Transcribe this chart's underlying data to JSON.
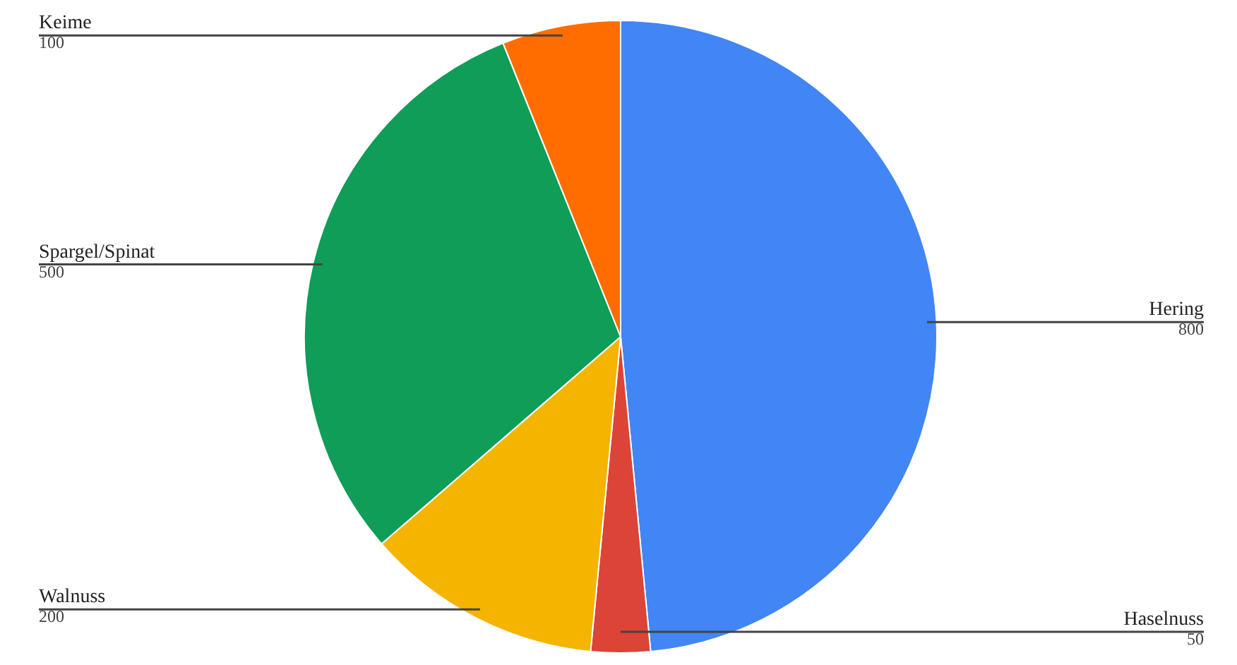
{
  "chart_data": {
    "type": "pie",
    "categories": [
      "Hering",
      "Haselnuss",
      "Walnuss",
      "Spargel/Spinat",
      "Keime"
    ],
    "values": [
      800,
      50,
      200,
      500,
      100
    ],
    "colors": [
      "#4285f4",
      "#db4437",
      "#f4b400",
      "#0f9d58",
      "#ff6d01"
    ],
    "data_labels": true
  }
}
